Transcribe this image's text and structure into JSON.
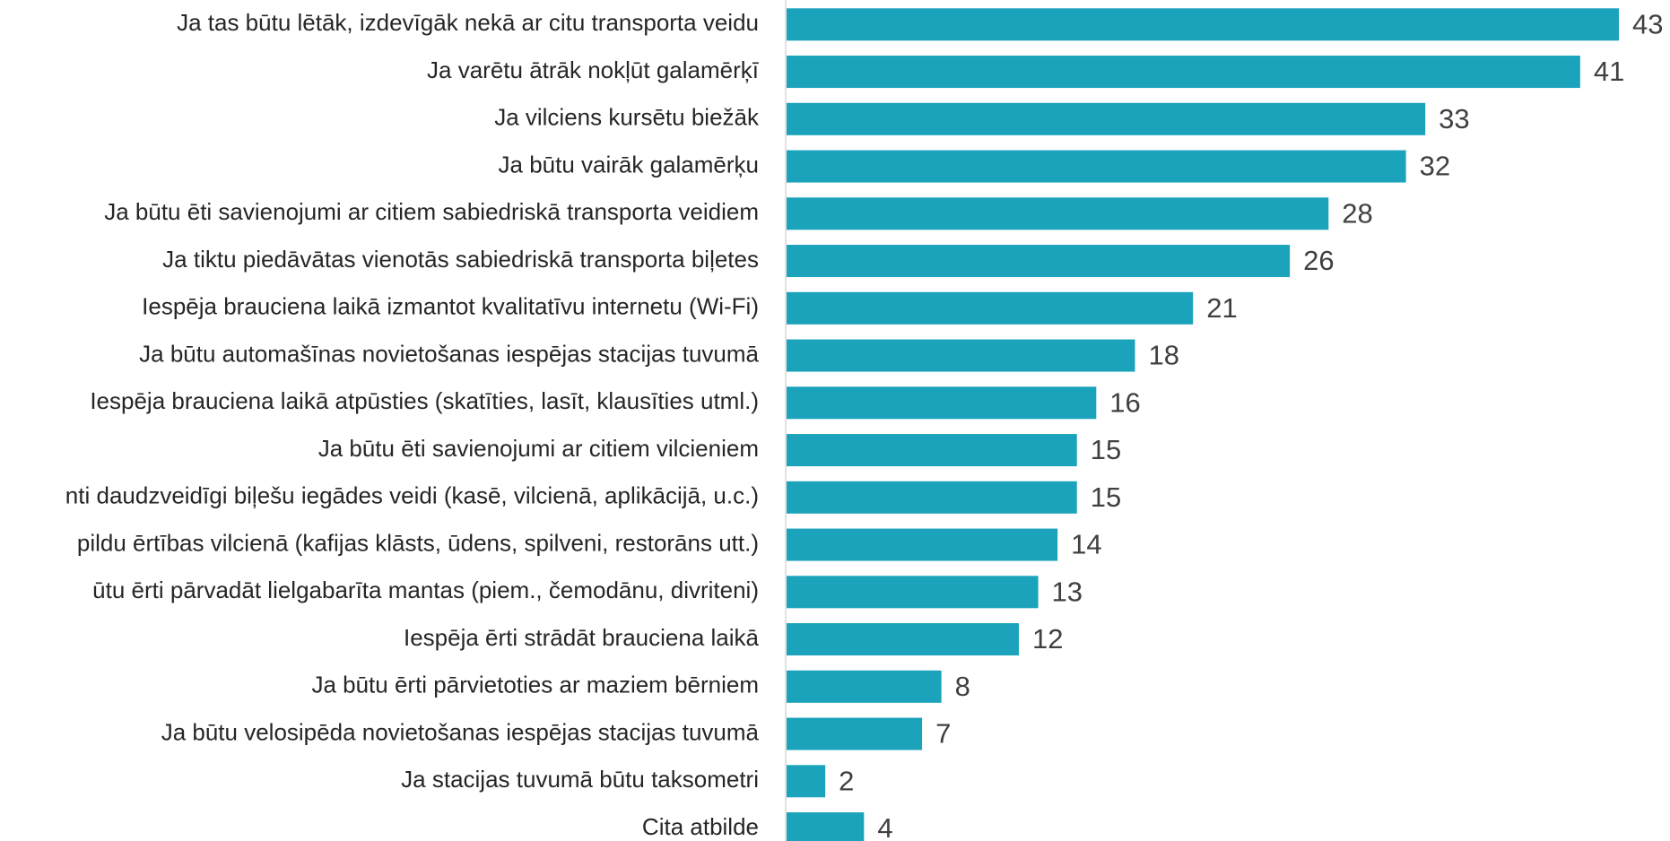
{
  "chart_data": {
    "type": "bar",
    "orientation": "horizontal",
    "color": "#1aa3bb",
    "categories": [
      "Ja tas būtu lētāk, izdevīgāk nekā ar citu transporta veidu",
      "Ja varētu ātrāk nokļūt galamērķī",
      "Ja vilciens kursētu biežāk",
      "Ja būtu vairāk galamērķu",
      "Ja būtu ēti savienojumi ar citiem sabiedriskā transporta veidiem",
      "Ja tiktu piedāvātas vienotās sabiedriskā transporta biļetes",
      "Iespēja brauciena laikā izmantot kvalitatīvu internetu (Wi-Fi)",
      "Ja būtu automašīnas novietošanas iespējas stacijas tuvumā",
      "Iespēja brauciena laikā atpūsties (skatīties, lasīt, klausīties utml.)",
      "Ja būtu ēti savienojumi ar citiem vilcieniem",
      "nti daudzveidīgi biļešu iegādes veidi (kasē, vilcienā, aplikācijā, u.c.)",
      "pildu ērtības vilcienā (kafijas klāsts, ūdens, spilveni, restorāns utt.)",
      "ūtu ērti pārvadāt lielgabarīta mantas (piem., čemodānu, divriteni)",
      "Iespēja ērti strādāt brauciena laikā",
      "Ja būtu ērti pārvietoties ar maziem bērniem",
      "Ja būtu velosipēda novietošanas iespējas stacijas tuvumā",
      "Ja stacijas tuvumā būtu taksometri",
      "Cita atbilde"
    ],
    "values": [
      43,
      41,
      33,
      32,
      28,
      26,
      21,
      18,
      16,
      15,
      15,
      14,
      13,
      12,
      8,
      7,
      2,
      4
    ]
  }
}
